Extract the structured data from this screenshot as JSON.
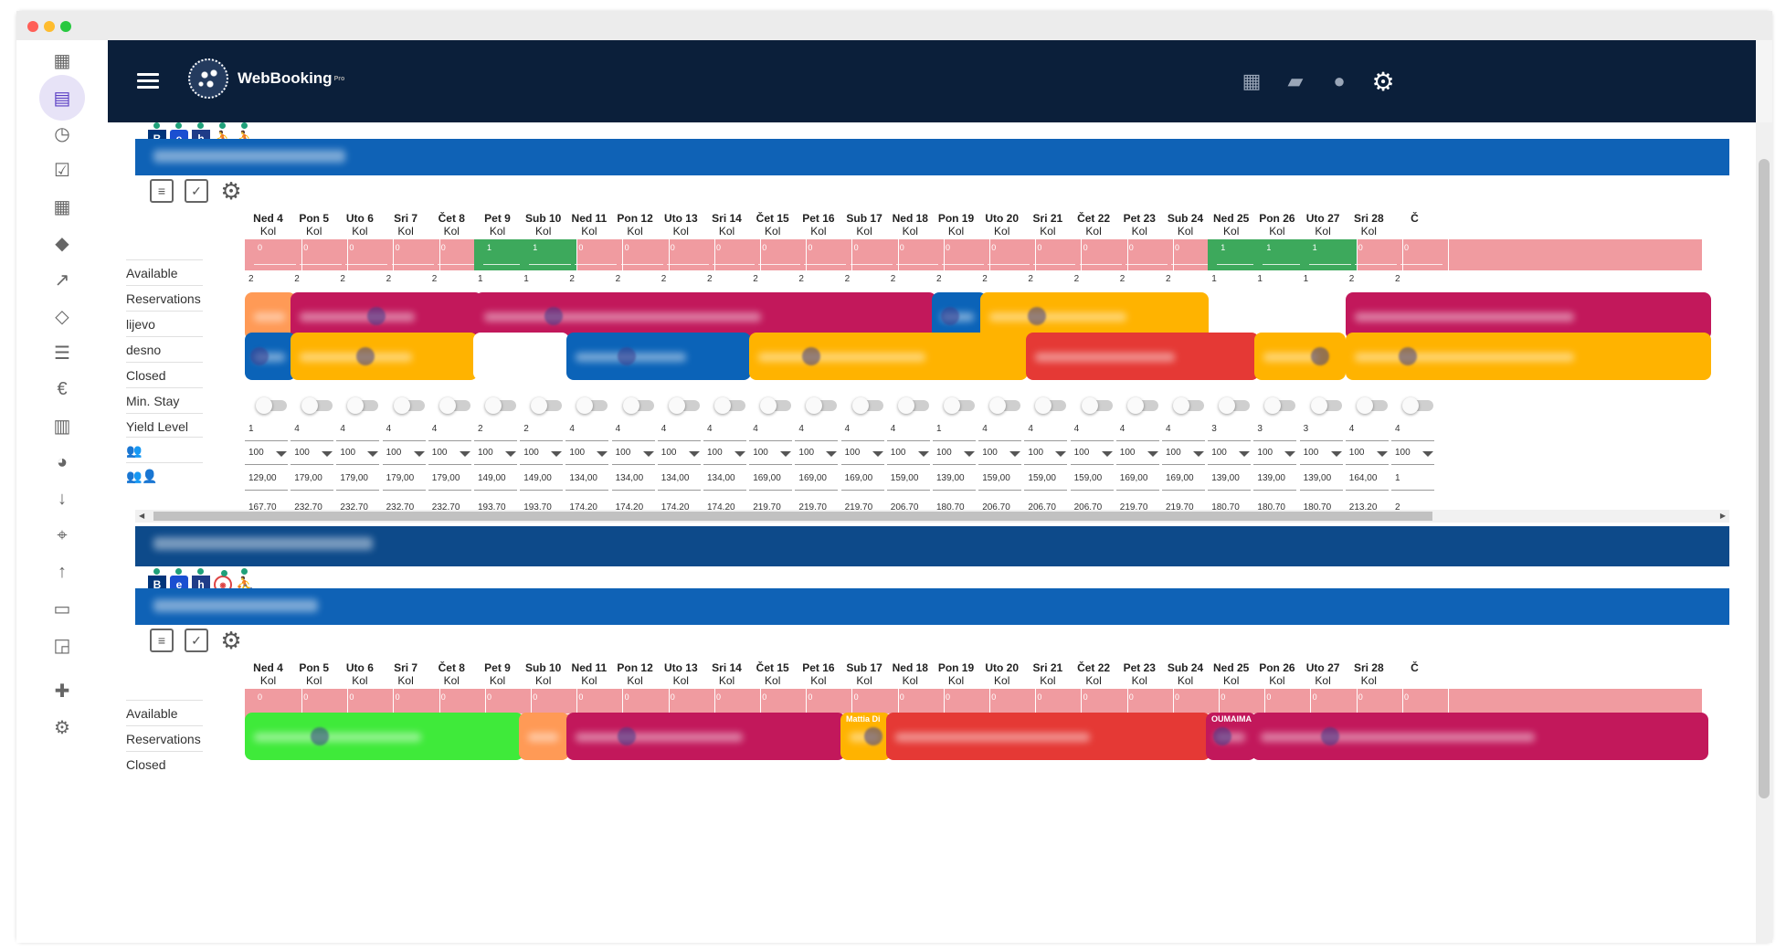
{
  "app": {
    "name": "WebBooking",
    "name_suffix": "Pro"
  },
  "sidebar_icons": [
    "dashboard-icon",
    "clipboard-icon",
    "clock-icon",
    "calendar-check-icon",
    "calendar-icon",
    "tag-icon",
    "trending-up-icon",
    "tag-outline-icon",
    "list-icon",
    "euro-icon",
    "book-icon",
    "pie-chart-icon",
    "arrow-down-icon",
    "location-pin-icon",
    "arrow-up-icon",
    "bed-icon",
    "cast-icon",
    "add-person-icon",
    "gear-icon"
  ],
  "labels": {
    "available": "Available",
    "reservations": "Reservations",
    "lijevo": "lijevo",
    "desno": "desno",
    "closed": "Closed",
    "min_stay": "Min. Stay",
    "yield_level": "Yield Level",
    "two_persons": "👥",
    "three_persons": "👥👤"
  },
  "days": [
    {
      "d": "Ned 4",
      "s": "Kol"
    },
    {
      "d": "Pon 5",
      "s": "Kol"
    },
    {
      "d": "Uto 6",
      "s": "Kol"
    },
    {
      "d": "Sri 7",
      "s": "Kol"
    },
    {
      "d": "Čet 8",
      "s": "Kol"
    },
    {
      "d": "Pet 9",
      "s": "Kol"
    },
    {
      "d": "Sub 10",
      "s": "Kol"
    },
    {
      "d": "Ned 11",
      "s": "Kol"
    },
    {
      "d": "Pon 12",
      "s": "Kol"
    },
    {
      "d": "Uto 13",
      "s": "Kol"
    },
    {
      "d": "Sri 14",
      "s": "Kol"
    },
    {
      "d": "Čet 15",
      "s": "Kol"
    },
    {
      "d": "Pet 16",
      "s": "Kol"
    },
    {
      "d": "Sub 17",
      "s": "Kol"
    },
    {
      "d": "Ned 18",
      "s": "Kol"
    },
    {
      "d": "Pon 19",
      "s": "Kol"
    },
    {
      "d": "Uto 20",
      "s": "Kol"
    },
    {
      "d": "Sri 21",
      "s": "Kol"
    },
    {
      "d": "Čet 22",
      "s": "Kol"
    },
    {
      "d": "Pet 23",
      "s": "Kol"
    },
    {
      "d": "Sub 24",
      "s": "Kol"
    },
    {
      "d": "Ned 25",
      "s": "Kol"
    },
    {
      "d": "Pon 26",
      "s": "Kol"
    },
    {
      "d": "Uto 27",
      "s": "Kol"
    },
    {
      "d": "Sri 28",
      "s": "Kol"
    },
    {
      "d": "Č",
      "s": ""
    }
  ],
  "unit1": {
    "available": [
      "0",
      "0",
      "0",
      "0",
      "0",
      "1",
      "1",
      "0",
      "0",
      "0",
      "0",
      "0",
      "0",
      "0",
      "0",
      "0",
      "0",
      "0",
      "0",
      "0",
      "0",
      "1",
      "1",
      "1",
      "0",
      "0"
    ],
    "reservations": [
      "2",
      "2",
      "2",
      "2",
      "2",
      "1",
      "1",
      "2",
      "2",
      "2",
      "2",
      "2",
      "2",
      "2",
      "2",
      "2",
      "2",
      "2",
      "2",
      "2",
      "2",
      "1",
      "1",
      "1",
      "2",
      "2"
    ],
    "min_stay": [
      "1",
      "4",
      "4",
      "4",
      "4",
      "2",
      "2",
      "4",
      "4",
      "4",
      "4",
      "4",
      "4",
      "4",
      "4",
      "1",
      "4",
      "4",
      "4",
      "4",
      "4",
      "3",
      "3",
      "3",
      "4",
      "4"
    ],
    "yield": [
      "100",
      "100",
      "100",
      "100",
      "100",
      "100",
      "100",
      "100",
      "100",
      "100",
      "100",
      "100",
      "100",
      "100",
      "100",
      "100",
      "100",
      "100",
      "100",
      "100",
      "100",
      "100",
      "100",
      "100",
      "100",
      "100"
    ],
    "price2": [
      "129,00",
      "179,00",
      "179,00",
      "179,00",
      "179,00",
      "149,00",
      "149,00",
      "134,00",
      "134,00",
      "134,00",
      "134,00",
      "169,00",
      "169,00",
      "169,00",
      "159,00",
      "139,00",
      "159,00",
      "159,00",
      "159,00",
      "169,00",
      "169,00",
      "139,00",
      "139,00",
      "139,00",
      "164,00",
      "1"
    ],
    "price3": [
      "167,70",
      "232,70",
      "232,70",
      "232,70",
      "232,70",
      "193,70",
      "193,70",
      "174,20",
      "174,20",
      "174,20",
      "174,20",
      "219,70",
      "219,70",
      "219,70",
      "206,70",
      "180,70",
      "206,70",
      "206,70",
      "206,70",
      "219,70",
      "219,70",
      "180,70",
      "180,70",
      "180,70",
      "213,20",
      "2"
    ]
  },
  "unit2": {
    "available": [
      "0",
      "0",
      "0",
      "0",
      "0",
      "0",
      "0",
      "0",
      "0",
      "0",
      "0",
      "0",
      "0",
      "0",
      "0",
      "0",
      "0",
      "0",
      "0",
      "0",
      "0",
      "0",
      "0",
      "0",
      "0",
      "0"
    ],
    "res_tag_1": "Mattia Di",
    "res_tag_2": "OUMAIMA"
  },
  "colors": {
    "navy": "#0b1f3a",
    "band": "#0f62b6",
    "pink": "#f09ba0",
    "green": "#3da95c",
    "magenta": "#c2185b",
    "orange": "#ffb300",
    "blue": "#0b63b8",
    "red": "#e53935",
    "lime": "#3fea3a",
    "salmon": "#ff9a56"
  }
}
